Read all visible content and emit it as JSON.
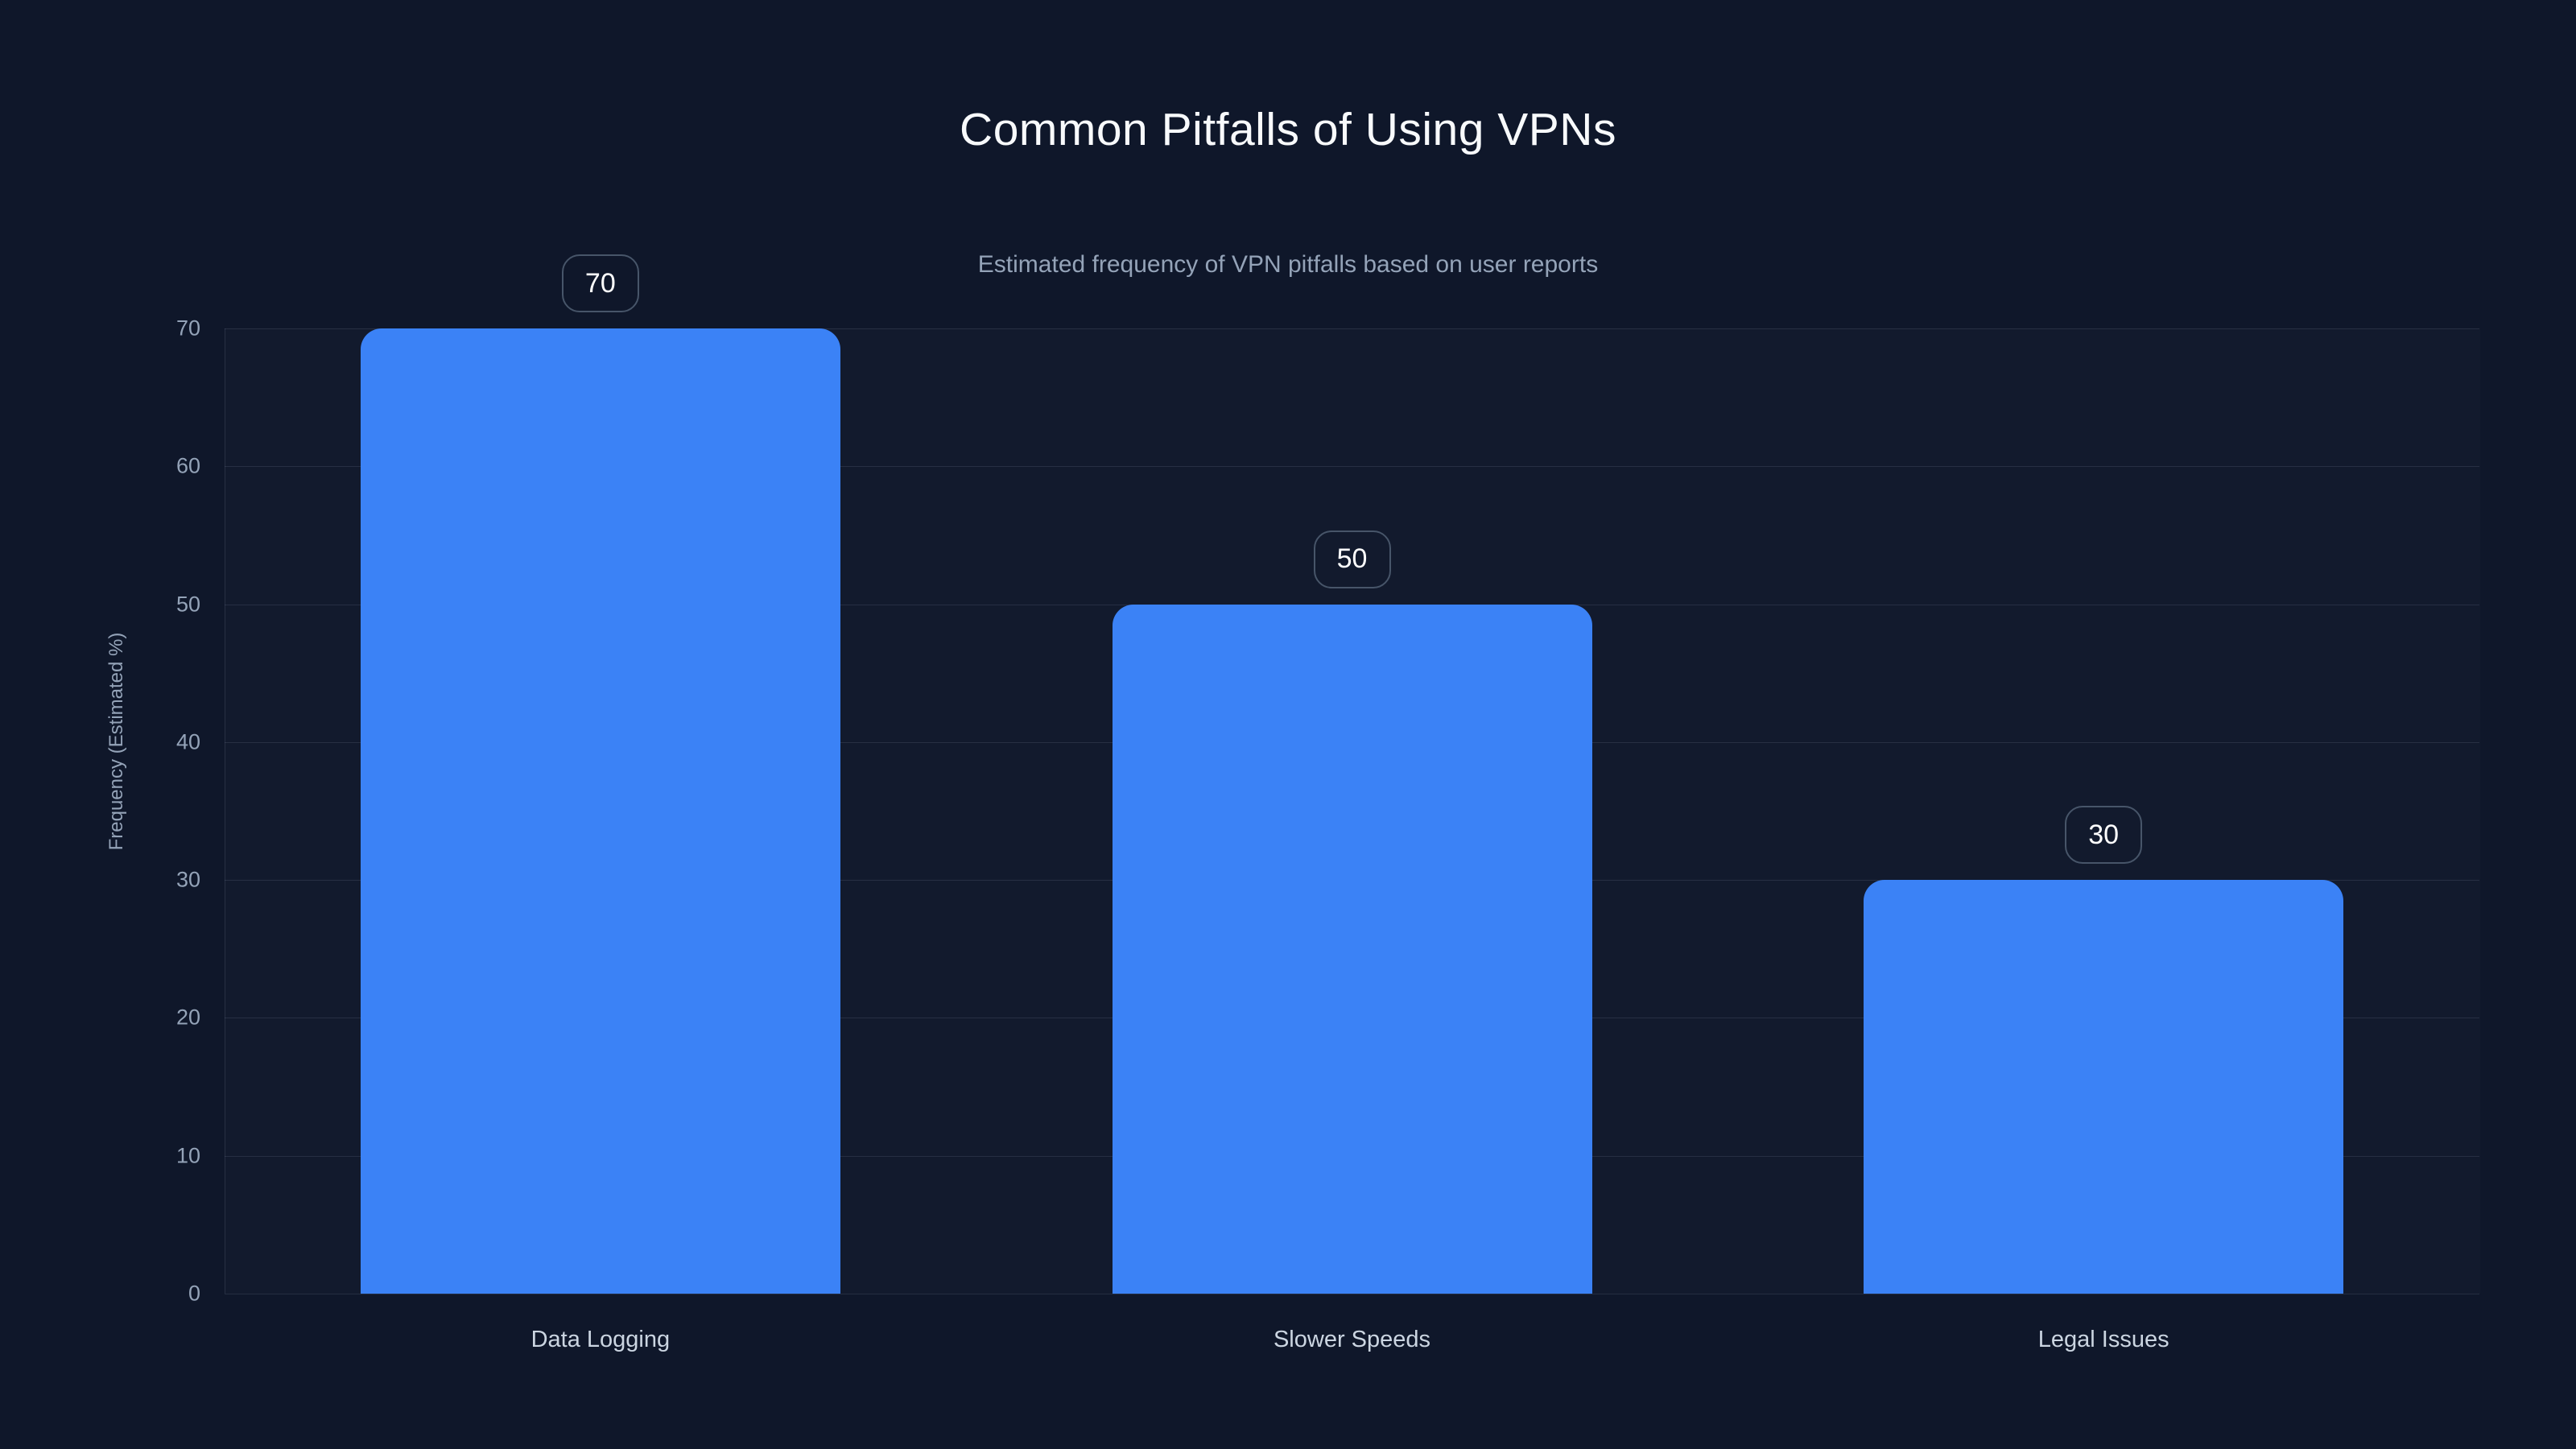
{
  "chart_data": {
    "type": "bar",
    "title": "Common Pitfalls of Using VPNs",
    "subtitle": "Estimated frequency of VPN pitfalls based on user reports",
    "categories": [
      "Data Logging",
      "Slower Speeds",
      "Legal Issues"
    ],
    "values": [
      70,
      50,
      30
    ],
    "value_labels": [
      "70",
      "50",
      "30"
    ],
    "xlabel": "",
    "ylabel": "Frequency (Estimated %)",
    "ylim": [
      0,
      70
    ],
    "yticks": [
      0,
      10,
      20,
      30,
      40,
      50,
      60,
      70
    ],
    "grid": true,
    "legend": "none",
    "colors": {
      "background": "#0f172a",
      "bar": "#3b82f6",
      "title_text": "#f8fafc",
      "subtitle_text": "#94a3b8",
      "tick_text": "#94a3b8",
      "category_text": "#cbd5e1",
      "gridline": "rgba(148,163,184,0.16)",
      "badge_border": "#475569",
      "badge_text": "#ffffff"
    }
  }
}
